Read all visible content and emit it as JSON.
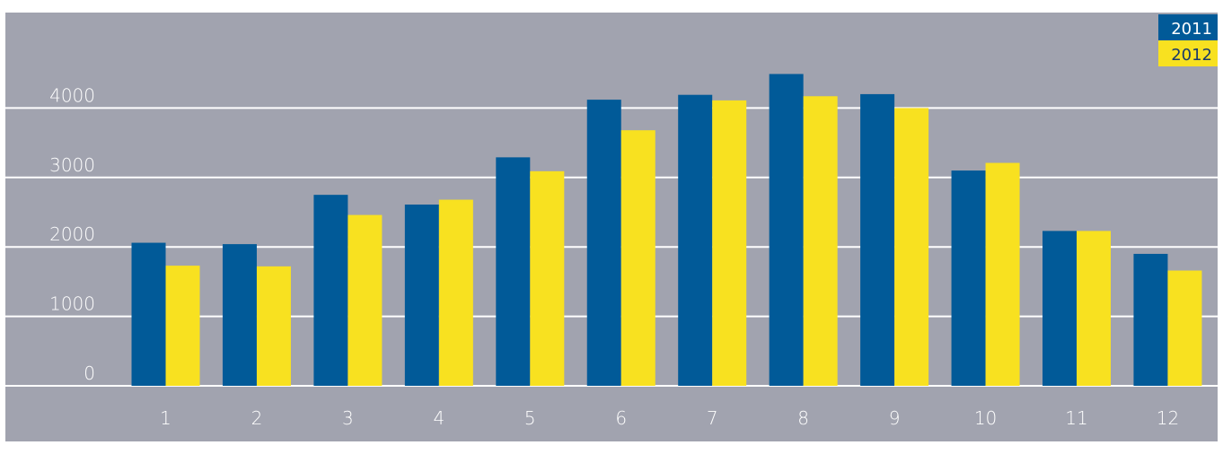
{
  "chart_data": {
    "type": "bar",
    "title": "",
    "xlabel": "",
    "ylabel": "",
    "categories": [
      "1",
      "2",
      "3",
      "4",
      "5",
      "6",
      "7",
      "8",
      "9",
      "10",
      "11",
      "12"
    ],
    "series": [
      {
        "name": "2011",
        "color": "#015a98",
        "values": [
          2060,
          2040,
          2750,
          2610,
          3290,
          4120,
          4190,
          4490,
          4200,
          3100,
          2230,
          1900
        ]
      },
      {
        "name": "2012",
        "color": "#f8e120",
        "values": [
          1730,
          1720,
          2460,
          2680,
          3090,
          3680,
          4110,
          4170,
          4000,
          3210,
          2230,
          1660
        ]
      }
    ],
    "ylim": [
      0,
      4500
    ],
    "yticks": [
      0,
      1000,
      2000,
      3000,
      4000
    ],
    "grid": true,
    "legend": "top-right",
    "background_color": "#a1a3af",
    "gridline_color": "#ffffff"
  }
}
